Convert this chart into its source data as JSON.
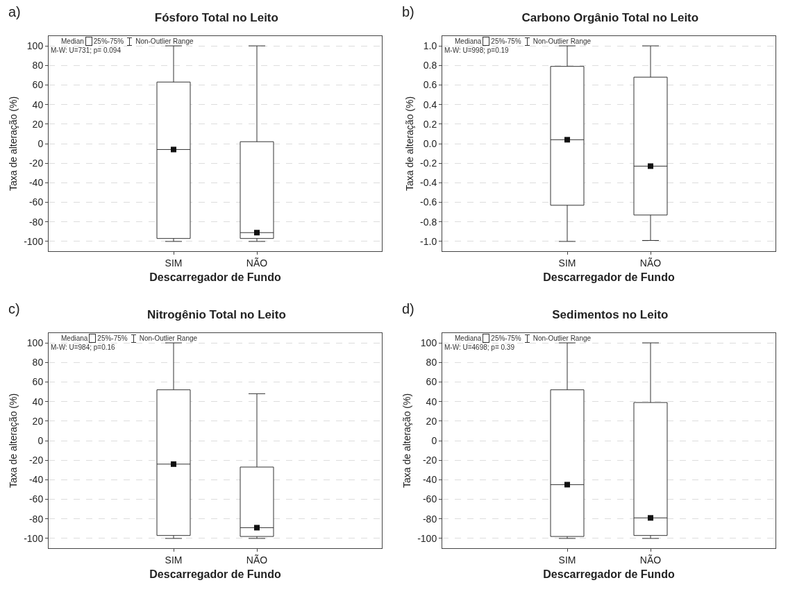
{
  "chart_data": [
    {
      "type": "box",
      "title": "Fósforo Total no Leito",
      "xlabel": "Descarregador de Fundo",
      "ylabel": "Taxa de alteração (%)",
      "categories": [
        "SIM",
        "NÃO"
      ],
      "boxes": [
        {
          "low": -100,
          "q1": -97,
          "median": -6,
          "q3": 63,
          "high": 100
        },
        {
          "low": -100,
          "q1": -97,
          "median": -91,
          "q3": 2,
          "high": 100
        }
      ],
      "series": [
        {
          "type": "scatter",
          "color": "#111111",
          "x": [
            "SIM",
            "NÃO"
          ],
          "values": [
            -6,
            -91
          ]
        }
      ],
      "ylim": [
        -110,
        110
      ],
      "yticks": [
        -100,
        -80,
        -60,
        -40,
        -20,
        0,
        20,
        40,
        60,
        80,
        100
      ],
      "grid": "y",
      "marker": "square",
      "annotations": [
        "a)",
        "Median",
        "25%-75%",
        "Non-Outlier Range",
        "M-W: U=731; p= 0.094"
      ]
    },
    {
      "type": "box",
      "title": "Carbono Orgânio Total no Leito",
      "xlabel": "Descarregador de Fundo",
      "ylabel": "Taxa de alteração (%)",
      "categories": [
        "SIM",
        "NÃO"
      ],
      "boxes": [
        {
          "low": -1.0,
          "q1": -0.63,
          "median": 0.04,
          "q3": 0.79,
          "high": 1.0
        },
        {
          "low": -0.99,
          "q1": -0.73,
          "median": -0.23,
          "q3": 0.68,
          "high": 1.0
        }
      ],
      "ylim": [
        -1.1,
        1.1
      ],
      "yticks": [
        {
          "value": -1,
          "label": "-1.0"
        },
        {
          "value": -0.8,
          "label": "-0.8"
        },
        {
          "value": -0.6,
          "label": "-0.6"
        },
        {
          "value": -0.4,
          "label": "-0.4"
        },
        {
          "value": -0.2,
          "label": "-0.2"
        },
        {
          "value": 0,
          "label": "0.0"
        },
        {
          "value": 0.2,
          "label": "0.2"
        },
        {
          "value": 0.4,
          "label": "0.4"
        },
        {
          "value": 0.6,
          "label": "0.6"
        },
        {
          "value": 0.8,
          "label": "0.8"
        },
        {
          "value": 1,
          "label": "1.0"
        }
      ],
      "grid": "y",
      "series": [
        {
          "type": "scatter",
          "color": "#111111",
          "x": [
            "SIM",
            "NÃO"
          ],
          "values": [
            0.04,
            -0.23
          ]
        }
      ],
      "marker": "square",
      "annotations": [
        "b)",
        "Mediana",
        "25%-75%",
        "Non-Outlier Range",
        "M-W: U=998; p=0.19"
      ]
    },
    {
      "type": "box",
      "title": "Nitrogênio Total no Leito",
      "xlabel": "Descarregador de Fundo",
      "ylabel": "Taxa de alteração (%)",
      "categories": [
        "SIM",
        "NÃO"
      ],
      "boxes": [
        {
          "low": -100,
          "q1": -97,
          "median": -24,
          "q3": 52,
          "high": 100
        },
        {
          "low": -100,
          "q1": -98,
          "median": -89,
          "q3": -27,
          "high": 48
        }
      ],
      "series": [
        {
          "type": "scatter",
          "color": "#111111",
          "x": [
            "SIM",
            "NÃO"
          ],
          "values": [
            -24,
            -89
          ]
        }
      ],
      "ylim": [
        -110,
        110
      ],
      "yticks": [
        -100,
        -80,
        -60,
        -40,
        -20,
        0,
        20,
        40,
        60,
        80,
        100
      ],
      "grid": "y",
      "marker": "square",
      "annotations": [
        "c)",
        "Mediana",
        "25%-75%",
        "Non-Outlier Range",
        "M-W: U=984; p=0.16"
      ]
    },
    {
      "type": "box",
      "title": "Sedimentos no Leito",
      "xlabel": "Descarregador de Fundo",
      "ylabel": "Taxa de alteração (%)",
      "categories": [
        "SIM",
        "NÃO"
      ],
      "boxes": [
        {
          "low": -100,
          "q1": -98,
          "median": -45,
          "q3": 52,
          "high": 100
        },
        {
          "low": -100,
          "q1": -97,
          "median": -79,
          "q3": 39,
          "high": 100
        }
      ],
      "series": [
        {
          "type": "scatter",
          "color": "#111111",
          "x": [
            "SIM",
            "NÃO"
          ],
          "values": [
            -45,
            -79
          ]
        }
      ],
      "ylim": [
        -110,
        110
      ],
      "yticks": [
        -100,
        -80,
        -60,
        -40,
        -20,
        0,
        20,
        40,
        60,
        80,
        100
      ],
      "grid": "y",
      "marker": "square",
      "annotations": [
        "d)",
        "Mediana",
        "25%-75%",
        "Non-Outlier Range",
        "M-W: U=4698; p= 0.39"
      ]
    }
  ]
}
